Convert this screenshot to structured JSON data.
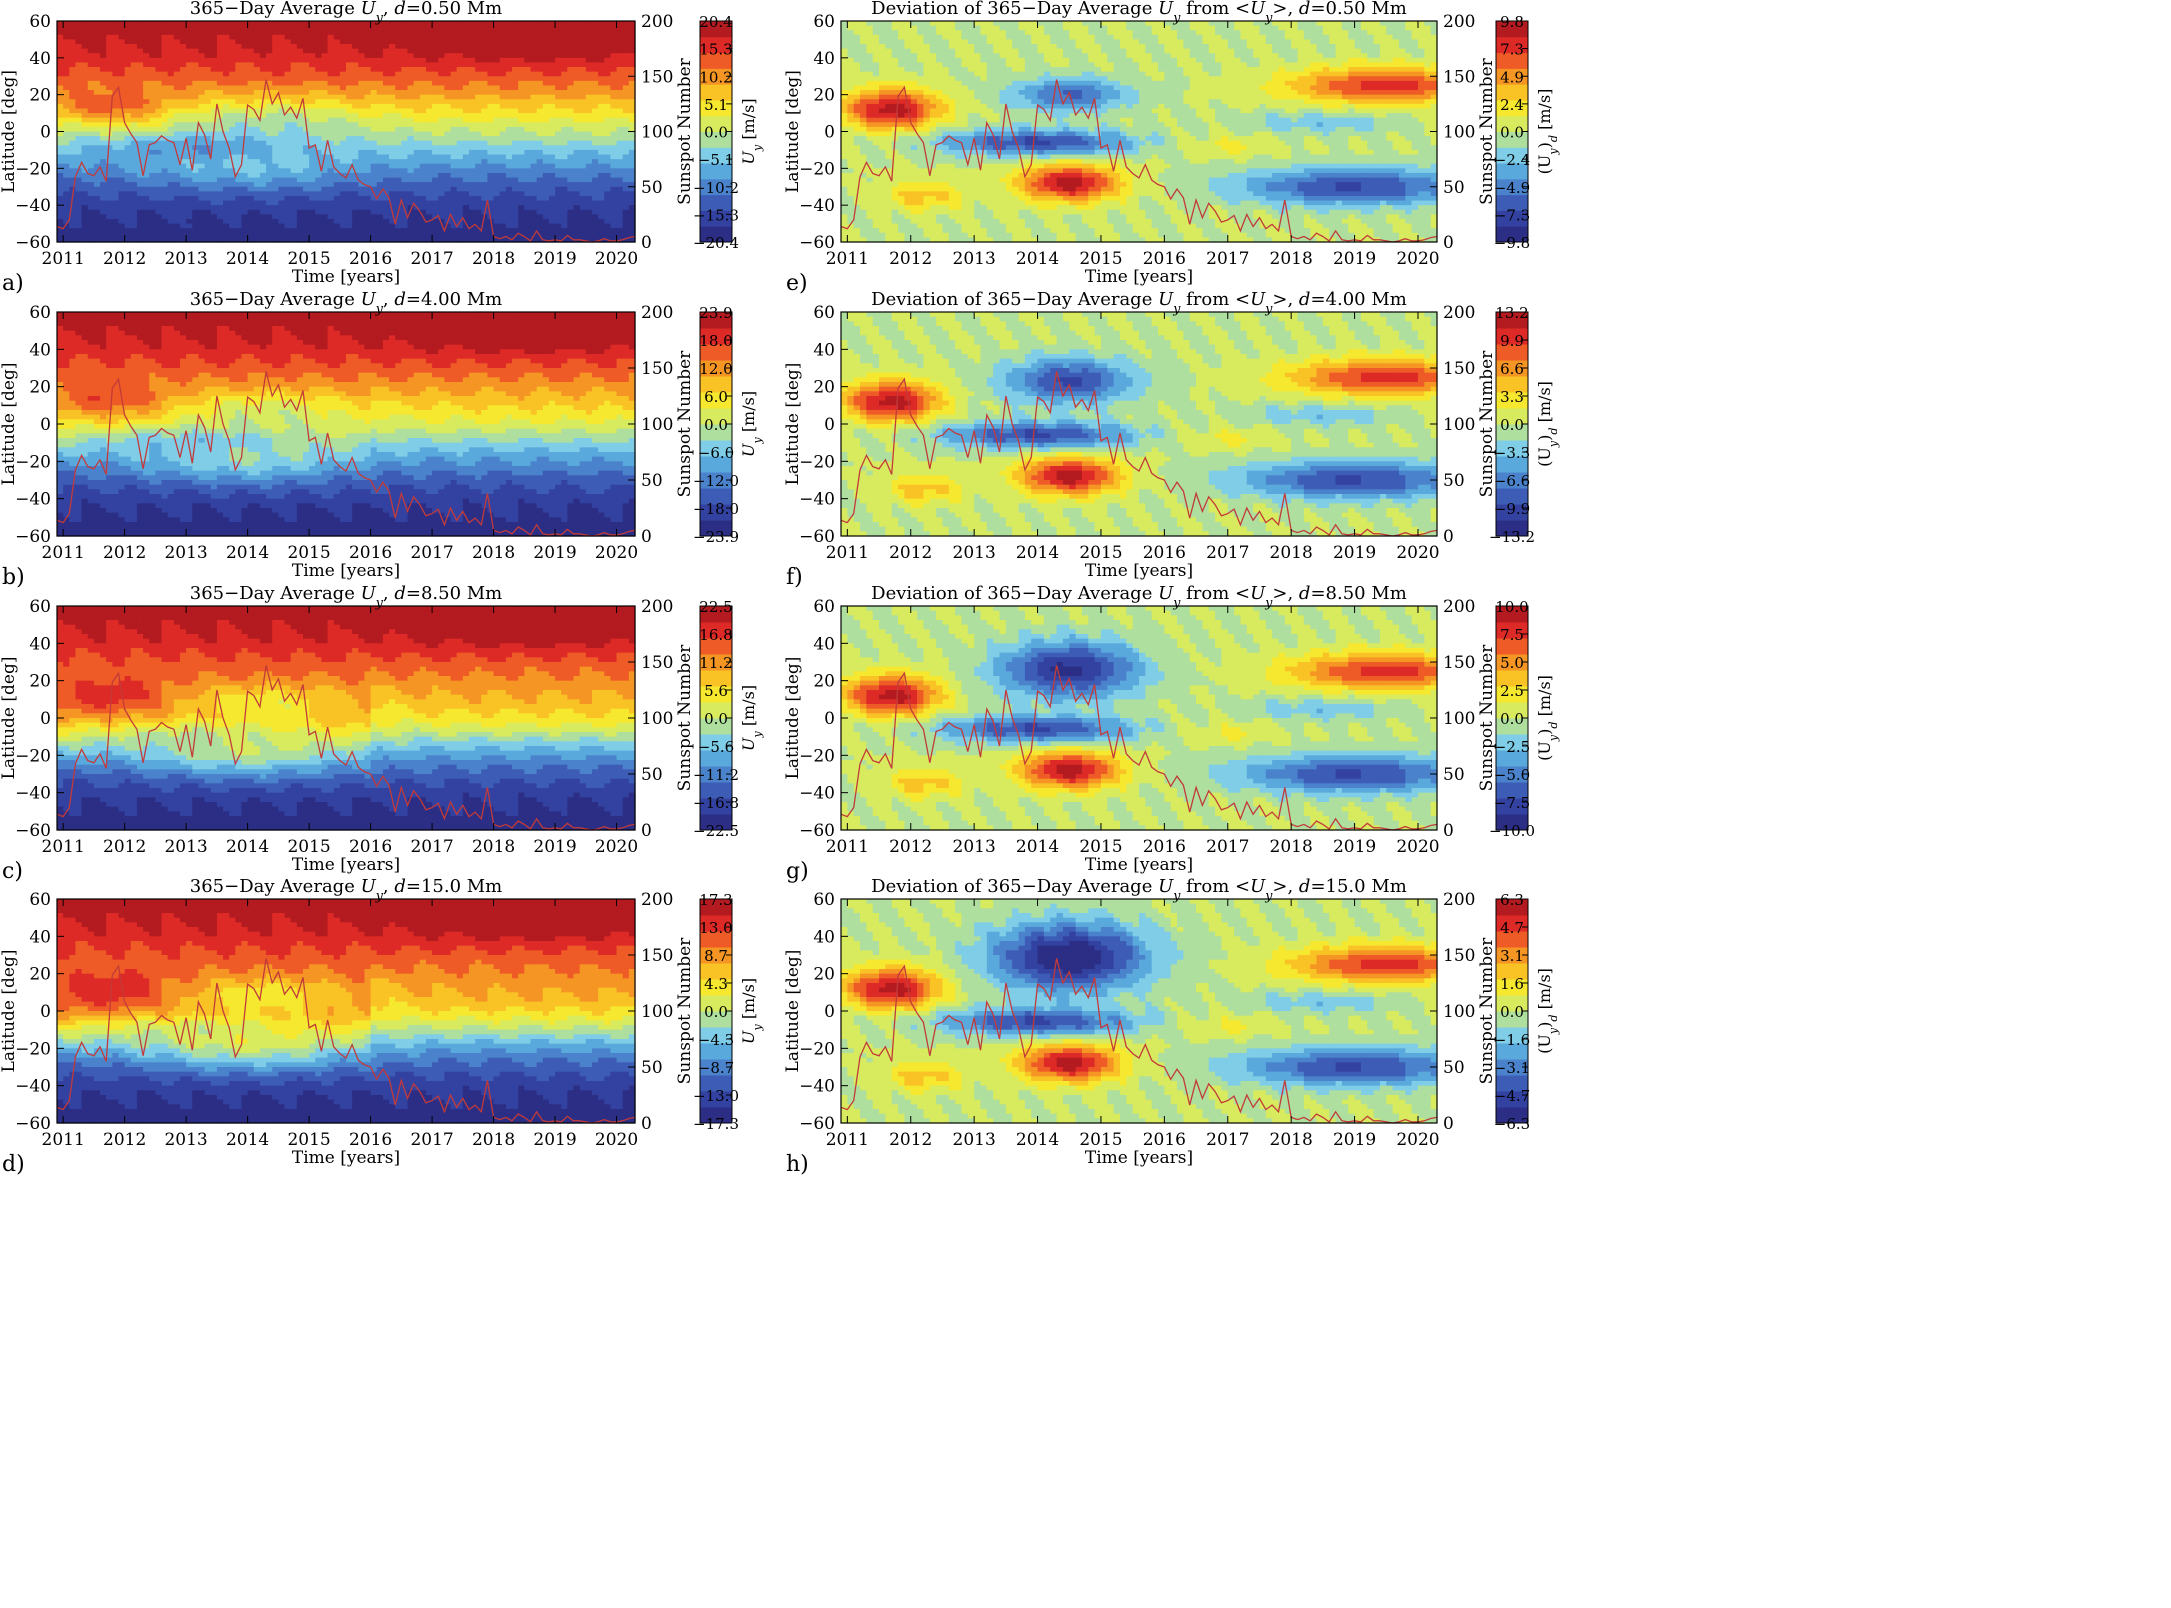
{
  "figure": {
    "background": "#ffffff"
  },
  "colormap": [
    "#2b2e84",
    "#3342a0",
    "#3d5cb6",
    "#4a83cc",
    "#5aa9dd",
    "#7fcde6",
    "#aedf9e",
    "#d8ea5e",
    "#f6e82e",
    "#f9c225",
    "#f59524",
    "#ef5b26",
    "#de2a26",
    "#b31b20"
  ],
  "sunspot_color": "#c23a3a",
  "chart_data": [
    {
      "id": "a",
      "panel_label": "a)",
      "type": "heatmap",
      "title": "365−Day Average U_y, d=0.50 Mm",
      "title_parts": [
        "365−Day Average ",
        "U",
        "y",
        ", ",
        "d",
        "=0.50 Mm"
      ],
      "xlabel": "Time [years]",
      "ylabel": "Latitude [deg]",
      "y2label": "Sunspot Number",
      "cbar_label_parts": [
        "U",
        "y",
        " [m/s]"
      ],
      "x_ticks": [
        "2011",
        "2012",
        "2013",
        "2014",
        "2015",
        "2016",
        "2017",
        "2018",
        "2019",
        "2020"
      ],
      "y_ticks": [
        "60",
        "40",
        "20",
        "0",
        "−20",
        "−40",
        "−60"
      ],
      "y2_ticks": [
        "200",
        "150",
        "100",
        "50",
        "0"
      ],
      "xlim": [
        2010.9,
        2020.3
      ],
      "ylim": [
        -60,
        60
      ],
      "y2lim": [
        0,
        200
      ],
      "cbar_ticks": [
        "20.4",
        "15.3",
        "10.2",
        "5.1",
        "0.0",
        "−5.1",
        "−10.2",
        "−15.3",
        "−20.4"
      ],
      "cbar_range": [
        -20.4,
        20.4
      ],
      "field_kind": "average",
      "depth_index": 0
    },
    {
      "id": "e",
      "panel_label": "e)",
      "type": "heatmap",
      "title": "Deviation of 365−Day Average U_y from <U_y>, d=0.50 Mm",
      "title_parts": [
        "Deviation of 365−Day Average ",
        "U",
        "y",
        " from <",
        "U",
        "y",
        ">, ",
        "d",
        "=0.50 Mm"
      ],
      "xlabel": "Time [years]",
      "ylabel": "Latitude [deg]",
      "y2label": "Sunspot Number",
      "cbar_label_parts": [
        "(U",
        "y",
        ")",
        "d",
        " [m/s]"
      ],
      "x_ticks": [
        "2011",
        "2012",
        "2013",
        "2014",
        "2015",
        "2016",
        "2017",
        "2018",
        "2019",
        "2020"
      ],
      "y_ticks": [
        "60",
        "40",
        "20",
        "0",
        "−20",
        "−40",
        "−60"
      ],
      "y2_ticks": [
        "200",
        "150",
        "100",
        "50",
        "0"
      ],
      "xlim": [
        2010.9,
        2020.3
      ],
      "ylim": [
        -60,
        60
      ],
      "y2lim": [
        0,
        200
      ],
      "cbar_ticks": [
        "9.8",
        "7.3",
        "4.9",
        "2.4",
        "0.0",
        "−2.4",
        "−4.9",
        "−7.3",
        "−9.8"
      ],
      "cbar_range": [
        -9.8,
        9.8
      ],
      "field_kind": "deviation",
      "depth_index": 0
    },
    {
      "id": "b",
      "panel_label": "b)",
      "type": "heatmap",
      "title": "365−Day Average U_y, d=4.00 Mm",
      "title_parts": [
        "365−Day Average ",
        "U",
        "y",
        ", ",
        "d",
        "=4.00 Mm"
      ],
      "xlabel": "Time [years]",
      "ylabel": "Latitude [deg]",
      "y2label": "Sunspot Number",
      "cbar_label_parts": [
        "U",
        "y",
        " [m/s]"
      ],
      "x_ticks": [
        "2011",
        "2012",
        "2013",
        "2014",
        "2015",
        "2016",
        "2017",
        "2018",
        "2019",
        "2020"
      ],
      "y_ticks": [
        "60",
        "40",
        "20",
        "0",
        "−20",
        "−40",
        "−60"
      ],
      "y2_ticks": [
        "200",
        "150",
        "100",
        "50",
        "0"
      ],
      "xlim": [
        2010.9,
        2020.3
      ],
      "ylim": [
        -60,
        60
      ],
      "y2lim": [
        0,
        200
      ],
      "cbar_ticks": [
        "23.9",
        "18.0",
        "12.0",
        "6.0",
        "0.0",
        "−6.0",
        "−12.0",
        "−18.0",
        "−23.9"
      ],
      "cbar_range": [
        -23.9,
        23.9
      ],
      "field_kind": "average",
      "depth_index": 1
    },
    {
      "id": "f",
      "panel_label": "f)",
      "type": "heatmap",
      "title": "Deviation of 365−Day Average U_y from <U_y>, d=4.00 Mm",
      "title_parts": [
        "Deviation of 365−Day Average ",
        "U",
        "y",
        " from <",
        "U",
        "y",
        ">, ",
        "d",
        "=4.00 Mm"
      ],
      "xlabel": "Time [years]",
      "ylabel": "Latitude [deg]",
      "y2label": "Sunspot Number",
      "cbar_label_parts": [
        "(U",
        "y",
        ")",
        "d",
        " [m/s]"
      ],
      "x_ticks": [
        "2011",
        "2012",
        "2013",
        "2014",
        "2015",
        "2016",
        "2017",
        "2018",
        "2019",
        "2020"
      ],
      "y_ticks": [
        "60",
        "40",
        "20",
        "0",
        "−20",
        "−40",
        "−60"
      ],
      "y2_ticks": [
        "200",
        "150",
        "100",
        "50",
        "0"
      ],
      "xlim": [
        2010.9,
        2020.3
      ],
      "ylim": [
        -60,
        60
      ],
      "y2lim": [
        0,
        200
      ],
      "cbar_ticks": [
        "13.2",
        "9.9",
        "6.6",
        "3.3",
        "0.0",
        "−3.3",
        "−6.6",
        "−9.9",
        "−13.2"
      ],
      "cbar_range": [
        -13.2,
        13.2
      ],
      "field_kind": "deviation",
      "depth_index": 1
    },
    {
      "id": "c",
      "panel_label": "c)",
      "type": "heatmap",
      "title": "365−Day Average U_y, d=8.50 Mm",
      "title_parts": [
        "365−Day Average ",
        "U",
        "y",
        ", ",
        "d",
        "=8.50 Mm"
      ],
      "xlabel": "Time [years]",
      "ylabel": "Latitude [deg]",
      "y2label": "Sunspot Number",
      "cbar_label_parts": [
        "U",
        "y",
        " [m/s]"
      ],
      "x_ticks": [
        "2011",
        "2012",
        "2013",
        "2014",
        "2015",
        "2016",
        "2017",
        "2018",
        "2019",
        "2020"
      ],
      "y_ticks": [
        "60",
        "40",
        "20",
        "0",
        "−20",
        "−40",
        "−60"
      ],
      "y2_ticks": [
        "200",
        "150",
        "100",
        "50",
        "0"
      ],
      "xlim": [
        2010.9,
        2020.3
      ],
      "ylim": [
        -60,
        60
      ],
      "y2lim": [
        0,
        200
      ],
      "cbar_ticks": [
        "22.5",
        "16.8",
        "11.2",
        "5.6",
        "0.0",
        "−5.6",
        "−11.2",
        "−16.8",
        "−22.5"
      ],
      "cbar_range": [
        -22.5,
        22.5
      ],
      "field_kind": "average",
      "depth_index": 2
    },
    {
      "id": "g",
      "panel_label": "g)",
      "type": "heatmap",
      "title": "Deviation of 365−Day Average U_y from <U_y>, d=8.50 Mm",
      "title_parts": [
        "Deviation of 365−Day Average ",
        "U",
        "y",
        " from <",
        "U",
        "y",
        ">, ",
        "d",
        "=8.50 Mm"
      ],
      "xlabel": "Time [years]",
      "ylabel": "Latitude [deg]",
      "y2label": "Sunspot Number",
      "cbar_label_parts": [
        "(U",
        "y",
        ")",
        "d",
        " [m/s]"
      ],
      "x_ticks": [
        "2011",
        "2012",
        "2013",
        "2014",
        "2015",
        "2016",
        "2017",
        "2018",
        "2019",
        "2020"
      ],
      "y_ticks": [
        "60",
        "40",
        "20",
        "0",
        "−20",
        "−40",
        "−60"
      ],
      "y2_ticks": [
        "200",
        "150",
        "100",
        "50",
        "0"
      ],
      "xlim": [
        2010.9,
        2020.3
      ],
      "ylim": [
        -60,
        60
      ],
      "y2lim": [
        0,
        200
      ],
      "cbar_ticks": [
        "10.0",
        "7.5",
        "5.0",
        "2.5",
        "0.0",
        "−2.5",
        "−5.0",
        "−7.5",
        "−10.0"
      ],
      "cbar_range": [
        -10.0,
        10.0
      ],
      "field_kind": "deviation",
      "depth_index": 2
    },
    {
      "id": "d",
      "panel_label": "d)",
      "type": "heatmap",
      "title": "365−Day Average U_y, d=15.0 Mm",
      "title_parts": [
        "365−Day Average ",
        "U",
        "y",
        ", ",
        "d",
        "=15.0 Mm"
      ],
      "xlabel": "Time [years]",
      "ylabel": "Latitude [deg]",
      "y2label": "Sunspot Number",
      "cbar_label_parts": [
        "U",
        "y",
        " [m/s]"
      ],
      "x_ticks": [
        "2011",
        "2012",
        "2013",
        "2014",
        "2015",
        "2016",
        "2017",
        "2018",
        "2019",
        "2020"
      ],
      "y_ticks": [
        "60",
        "40",
        "20",
        "0",
        "−20",
        "−40",
        "−60"
      ],
      "y2_ticks": [
        "200",
        "150",
        "100",
        "50",
        "0"
      ],
      "xlim": [
        2010.9,
        2020.3
      ],
      "ylim": [
        -60,
        60
      ],
      "y2lim": [
        0,
        200
      ],
      "cbar_ticks": [
        "17.3",
        "13.0",
        "8.7",
        "4.3",
        "0.0",
        "−4.3",
        "−8.7",
        "−13.0",
        "−17.3"
      ],
      "cbar_range": [
        -17.3,
        17.3
      ],
      "field_kind": "average",
      "depth_index": 3
    },
    {
      "id": "h",
      "panel_label": "h)",
      "type": "heatmap",
      "title": "Deviation of 365−Day Average U_y from <U_y>, d=15.0 Mm",
      "title_parts": [
        "Deviation of 365−Day Average ",
        "U",
        "y",
        " from <",
        "U",
        "y",
        ">, ",
        "d",
        "=15.0 Mm"
      ],
      "xlabel": "Time [years]",
      "ylabel": "Latitude [deg]",
      "y2label": "Sunspot Number",
      "cbar_label_parts": [
        "(U",
        "y",
        ")",
        "d",
        " [m/s]"
      ],
      "x_ticks": [
        "2011",
        "2012",
        "2013",
        "2014",
        "2015",
        "2016",
        "2017",
        "2018",
        "2019",
        "2020"
      ],
      "y_ticks": [
        "60",
        "40",
        "20",
        "0",
        "−20",
        "−40",
        "−60"
      ],
      "y2_ticks": [
        "200",
        "150",
        "100",
        "50",
        "0"
      ],
      "xlim": [
        2010.9,
        2020.3
      ],
      "ylim": [
        -60,
        60
      ],
      "y2lim": [
        0,
        200
      ],
      "cbar_ticks": [
        "6.3",
        "4.7",
        "3.1",
        "1.6",
        "0.0",
        "−1.6",
        "−3.1",
        "−4.7",
        "−6.3"
      ],
      "cbar_range": [
        -6.3,
        6.3
      ],
      "field_kind": "deviation",
      "depth_index": 3
    }
  ],
  "sunspot_series": {
    "name": "Sunspot Number",
    "t": [
      2010.9,
      2011.0,
      2011.1,
      2011.2,
      2011.3,
      2011.4,
      2011.5,
      2011.6,
      2011.7,
      2011.8,
      2011.9,
      2012.0,
      2012.1,
      2012.2,
      2012.3,
      2012.4,
      2012.5,
      2012.6,
      2012.7,
      2012.8,
      2012.9,
      2013.0,
      2013.1,
      2013.2,
      2013.3,
      2013.4,
      2013.5,
      2013.6,
      2013.7,
      2013.8,
      2013.9,
      2014.0,
      2014.1,
      2014.2,
      2014.3,
      2014.4,
      2014.5,
      2014.6,
      2014.7,
      2014.8,
      2014.9,
      2015.0,
      2015.1,
      2015.2,
      2015.3,
      2015.4,
      2015.5,
      2015.6,
      2015.7,
      2015.8,
      2015.9,
      2016.0,
      2016.1,
      2016.2,
      2016.3,
      2016.4,
      2016.5,
      2016.6,
      2016.7,
      2016.8,
      2016.9,
      2017.0,
      2017.1,
      2017.2,
      2017.3,
      2017.4,
      2017.5,
      2017.6,
      2017.7,
      2017.8,
      2017.9,
      2018.0,
      2018.1,
      2018.2,
      2018.3,
      2018.4,
      2018.5,
      2018.6,
      2018.7,
      2018.8,
      2018.9,
      2019.0,
      2019.1,
      2019.2,
      2019.3,
      2019.4,
      2019.5,
      2019.6,
      2019.7,
      2019.8,
      2019.9,
      2020.0,
      2020.1,
      2020.2,
      2020.3
    ],
    "ssn": [
      14,
      12,
      20,
      59,
      72,
      62,
      60,
      68,
      55,
      132,
      140,
      108,
      98,
      90,
      60,
      88,
      90,
      96,
      92,
      90,
      70,
      94,
      65,
      108,
      97,
      75,
      125,
      100,
      85,
      59,
      70,
      124,
      120,
      110,
      147,
      125,
      135,
      115,
      122,
      112,
      130,
      85,
      88,
      64,
      92,
      68,
      62,
      58,
      70,
      56,
      52,
      50,
      39,
      48,
      40,
      16,
      38,
      22,
      35,
      28,
      18,
      20,
      24,
      10,
      25,
      14,
      22,
      12,
      16,
      10,
      38,
      5,
      3,
      5,
      2,
      8,
      5,
      1,
      10,
      2,
      1,
      2,
      1,
      6,
      2,
      2,
      1,
      0,
      1,
      3,
      1,
      1,
      2,
      4,
      5
    ]
  }
}
